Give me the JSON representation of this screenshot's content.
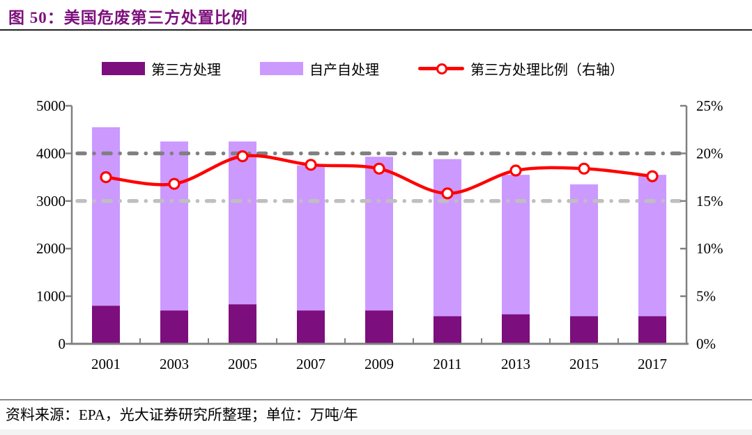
{
  "title": "图 50：美国危废第三方处置比例",
  "title_color": "#7d107d",
  "footer": {
    "source_line": "资料来源：EPA，光大证券研究所整理；单位：万吨/年"
  },
  "colors": {
    "third_party_bar": "#7d0e7d",
    "self_treat_bar": "#cc99ff",
    "ratio_line": "#ff0000",
    "gridline_dark": "#808080",
    "gridline_light": "#bfbfbf",
    "axis": "#808080",
    "text": "#000000"
  },
  "chart_data": {
    "type": "bar",
    "subtype": "stacked-bars-with-line",
    "categories": [
      "2001",
      "2003",
      "2005",
      "2007",
      "2009",
      "2011",
      "2013",
      "2015",
      "2017"
    ],
    "series": [
      {
        "name": "第三方处理",
        "kind": "bar",
        "stack": true,
        "color": "#7d0e7d",
        "values": [
          800,
          700,
          830,
          700,
          700,
          580,
          620,
          580,
          580
        ]
      },
      {
        "name": "自产自处理",
        "kind": "bar",
        "stack": true,
        "color": "#cc99ff",
        "values": [
          3750,
          3550,
          3420,
          3050,
          3230,
          3300,
          2930,
          2770,
          2970
        ]
      },
      {
        "name": "第三方处理比例（右轴）",
        "kind": "line",
        "axis": "right",
        "color": "#ff0000",
        "values": [
          17.5,
          16.8,
          19.7,
          18.8,
          18.4,
          15.8,
          18.2,
          18.4,
          17.6
        ]
      }
    ],
    "stack_totals": [
      4550,
      4250,
      4250,
      3750,
      3930,
      3880,
      3550,
      3350,
      3550
    ],
    "left_axis": {
      "min": 0,
      "max": 5000,
      "tick_values": [
        0,
        1000,
        2000,
        3000,
        4000,
        5000
      ],
      "tick_labels": [
        "0",
        "1000",
        "2000",
        "3000",
        "4000",
        "5000"
      ]
    },
    "right_axis": {
      "min": 0,
      "max": 25,
      "tick_values": [
        0,
        5,
        10,
        15,
        20,
        25
      ],
      "tick_labels": [
        "0%",
        "5%",
        "10%",
        "15%",
        "20%",
        "25%"
      ]
    },
    "gridlines": [
      {
        "value": 4000,
        "color": "#808080"
      },
      {
        "value": 3000,
        "color": "#bfbfbf"
      }
    ],
    "legend_position": "top",
    "grid": "dash-dot-horizontal"
  }
}
